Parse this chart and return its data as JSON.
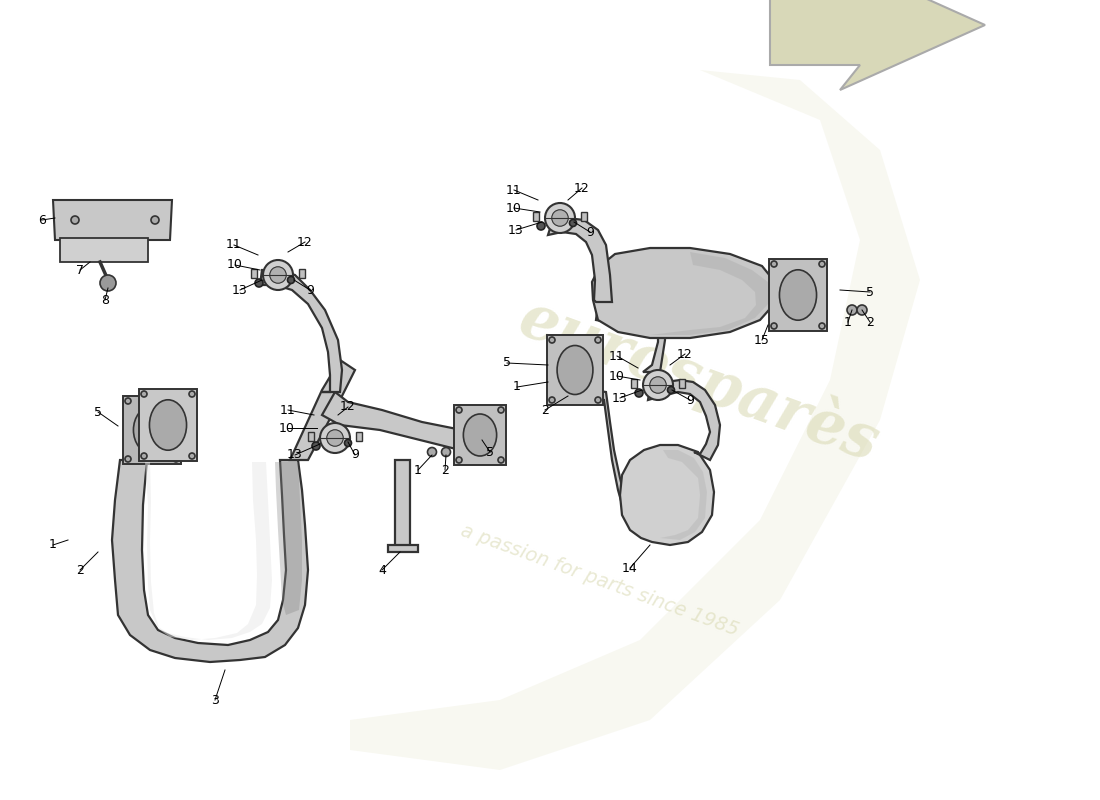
{
  "bg_color": "#ffffff",
  "pipe_gray": "#c8c8c8",
  "pipe_dark": "#888888",
  "pipe_edge": "#333333",
  "pipe_light": "#e8e8e8",
  "flange_gray": "#b8b8b8",
  "wm_color": "#d8d8b0",
  "wm_color2": "#c8c890",
  "arrow_fill": "#d8d8b8",
  "arrow_edge": "#aaaaaa",
  "lw": 1.6,
  "fs": 9,
  "fig_w": 11.0,
  "fig_h": 8.0
}
